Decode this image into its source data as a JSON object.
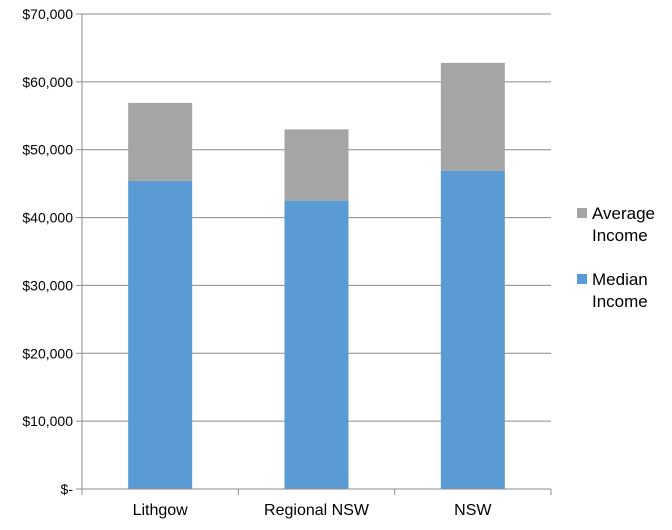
{
  "chart_data": {
    "type": "bar",
    "stacked": true,
    "title": "",
    "xlabel": "",
    "ylabel": "",
    "categories": [
      "Lithgow",
      "Regional NSW",
      "NSW"
    ],
    "ylim": [
      0,
      70000
    ],
    "yticks": [
      0,
      10000,
      20000,
      30000,
      40000,
      50000,
      60000,
      70000
    ],
    "ytick_labels": [
      "$-",
      "$10,000",
      "$20,000",
      "$30,000",
      "$40,000",
      "$50,000",
      "$60,000",
      "$70,000"
    ],
    "grid": true,
    "legend_position": "right",
    "series": [
      {
        "name": "Median Income",
        "legend_lines": [
          "Median",
          "Income"
        ],
        "values": [
          45400,
          42500,
          46900
        ],
        "color": "#5b9bd5"
      },
      {
        "name": "Average Income",
        "legend_lines": [
          "Average",
          "Income"
        ],
        "values": [
          11500,
          10500,
          15900
        ],
        "color": "#a5a5a5"
      }
    ]
  }
}
